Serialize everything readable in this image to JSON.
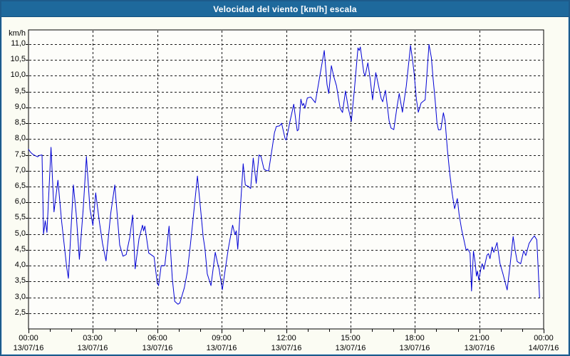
{
  "window": {
    "title": "Velocidad del viento [km/h] escala"
  },
  "colors": {
    "title_bar": "#1e699c",
    "title_text": "#ffffff",
    "frame_border": "#1d5b8b",
    "frame_inner_highlight": "#cfe3f2",
    "page_background": "#fbfcf3",
    "plot_background": "#fdfdfa",
    "plot_border": "#000000",
    "grid_line": "#1a1a1a",
    "axis_text": "#000000",
    "series_line": "#0101d5"
  },
  "chart_data": {
    "type": "line",
    "title": "Velocidad del viento [km/h] escala",
    "xlabel": "",
    "ylabel": "km/h",
    "ylim": [
      2.0,
      11.45
    ],
    "xlim_hours": [
      0,
      24
    ],
    "grid": "dashed; horizontal every 0.5 km/h, vertical every 3 h",
    "legend_position": "none",
    "x_minor_tick_every_hours": 1,
    "y_ticks": [
      {
        "value": 11.0,
        "label": "11,0"
      },
      {
        "value": 10.5,
        "label": "10,5"
      },
      {
        "value": 10.0,
        "label": "10,0"
      },
      {
        "value": 9.5,
        "label": "9,5"
      },
      {
        "value": 9.0,
        "label": "9,0"
      },
      {
        "value": 8.5,
        "label": "8,5"
      },
      {
        "value": 8.0,
        "label": "8,0"
      },
      {
        "value": 7.5,
        "label": "7,5"
      },
      {
        "value": 7.0,
        "label": "7,0"
      },
      {
        "value": 6.5,
        "label": "6,5"
      },
      {
        "value": 6.0,
        "label": "6,0"
      },
      {
        "value": 5.5,
        "label": "5,5"
      },
      {
        "value": 5.0,
        "label": "5,0"
      },
      {
        "value": 4.5,
        "label": "4,5"
      },
      {
        "value": 4.0,
        "label": "4,0"
      },
      {
        "value": 3.5,
        "label": "3,5"
      },
      {
        "value": 3.0,
        "label": "3,0"
      },
      {
        "value": 2.5,
        "label": "2,5"
      }
    ],
    "x_ticks": [
      {
        "hour": 0,
        "time": "00:00",
        "date": "13/07/16"
      },
      {
        "hour": 3,
        "time": "03:00",
        "date": "13/07/16"
      },
      {
        "hour": 6,
        "time": "06:00",
        "date": "13/07/16"
      },
      {
        "hour": 9,
        "time": "09:00",
        "date": "13/07/16"
      },
      {
        "hour": 12,
        "time": "12:00",
        "date": "13/07/16"
      },
      {
        "hour": 15,
        "time": "15:00",
        "date": "13/07/16"
      },
      {
        "hour": 18,
        "time": "18:00",
        "date": "13/07/16"
      },
      {
        "hour": 21,
        "time": "21:00",
        "date": "13/07/16"
      },
      {
        "hour": 24,
        "time": "00:00",
        "date": "14/07/16"
      }
    ],
    "series": [
      {
        "name": "Velocidad del viento [km/h]",
        "color": "#0101d5",
        "points": [
          [
            0.0,
            7.68
          ],
          [
            0.1,
            7.58
          ],
          [
            0.2,
            7.52
          ],
          [
            0.3,
            7.48
          ],
          [
            0.42,
            7.44
          ],
          [
            0.5,
            7.48
          ],
          [
            0.63,
            7.5
          ],
          [
            0.7,
            5.0
          ],
          [
            0.78,
            5.42
          ],
          [
            0.86,
            5.05
          ],
          [
            1.05,
            7.74
          ],
          [
            1.19,
            5.7
          ],
          [
            1.37,
            6.7
          ],
          [
            1.54,
            5.42
          ],
          [
            1.78,
            3.95
          ],
          [
            1.86,
            3.6
          ],
          [
            2.09,
            6.55
          ],
          [
            2.22,
            5.65
          ],
          [
            2.37,
            4.2
          ],
          [
            2.55,
            5.8
          ],
          [
            2.7,
            7.45
          ],
          [
            2.86,
            5.8
          ],
          [
            3.0,
            5.27
          ],
          [
            3.13,
            6.3
          ],
          [
            3.3,
            5.4
          ],
          [
            3.45,
            4.7
          ],
          [
            3.61,
            4.15
          ],
          [
            3.83,
            5.65
          ],
          [
            4.02,
            6.55
          ],
          [
            4.25,
            4.65
          ],
          [
            4.4,
            4.3
          ],
          [
            4.55,
            4.35
          ],
          [
            4.72,
            4.9
          ],
          [
            4.85,
            5.6
          ],
          [
            4.97,
            3.9
          ],
          [
            5.15,
            4.85
          ],
          [
            5.31,
            5.28
          ],
          [
            5.36,
            5.1
          ],
          [
            5.42,
            5.25
          ],
          [
            5.6,
            4.4
          ],
          [
            5.85,
            4.28
          ],
          [
            6.0,
            3.43
          ],
          [
            6.06,
            3.37
          ],
          [
            6.18,
            4.0
          ],
          [
            6.35,
            4.0
          ],
          [
            6.55,
            5.25
          ],
          [
            6.7,
            3.6
          ],
          [
            6.81,
            2.87
          ],
          [
            6.96,
            2.78
          ],
          [
            7.05,
            2.82
          ],
          [
            7.26,
            3.3
          ],
          [
            7.4,
            3.8
          ],
          [
            7.55,
            4.7
          ],
          [
            7.7,
            5.7
          ],
          [
            7.87,
            6.83
          ],
          [
            8.03,
            5.7
          ],
          [
            8.14,
            4.9
          ],
          [
            8.22,
            4.55
          ],
          [
            8.33,
            3.74
          ],
          [
            8.5,
            3.37
          ],
          [
            8.7,
            4.42
          ],
          [
            8.81,
            4.08
          ],
          [
            8.88,
            3.9
          ],
          [
            9.03,
            3.24
          ],
          [
            9.31,
            4.55
          ],
          [
            9.51,
            5.28
          ],
          [
            9.62,
            4.98
          ],
          [
            9.68,
            5.1
          ],
          [
            9.75,
            4.52
          ],
          [
            10.0,
            7.22
          ],
          [
            10.1,
            6.55
          ],
          [
            10.25,
            6.5
          ],
          [
            10.35,
            6.44
          ],
          [
            10.47,
            7.4
          ],
          [
            10.61,
            6.6
          ],
          [
            10.74,
            7.5
          ],
          [
            10.83,
            7.45
          ],
          [
            10.97,
            7.05
          ],
          [
            11.1,
            7.0
          ],
          [
            11.19,
            7.0
          ],
          [
            11.35,
            7.7
          ],
          [
            11.46,
            8.2
          ],
          [
            11.55,
            8.4
          ],
          [
            11.7,
            8.42
          ],
          [
            11.79,
            8.5
          ],
          [
            11.96,
            8.0
          ],
          [
            12.01,
            7.97
          ],
          [
            12.18,
            8.55
          ],
          [
            12.36,
            9.1
          ],
          [
            12.47,
            8.5
          ],
          [
            12.52,
            8.26
          ],
          [
            12.58,
            8.3
          ],
          [
            12.69,
            9.26
          ],
          [
            12.76,
            9.06
          ],
          [
            12.82,
            9.13
          ],
          [
            12.88,
            8.97
          ],
          [
            12.99,
            9.3
          ],
          [
            13.15,
            9.33
          ],
          [
            13.36,
            9.15
          ],
          [
            13.6,
            10.1
          ],
          [
            13.78,
            10.8
          ],
          [
            13.91,
            9.72
          ],
          [
            13.99,
            9.44
          ],
          [
            14.11,
            10.32
          ],
          [
            14.22,
            9.98
          ],
          [
            14.35,
            9.68
          ],
          [
            14.52,
            8.97
          ],
          [
            14.63,
            8.84
          ],
          [
            14.77,
            9.52
          ],
          [
            14.9,
            8.97
          ],
          [
            15.04,
            8.56
          ],
          [
            15.18,
            9.54
          ],
          [
            15.35,
            10.88
          ],
          [
            15.41,
            10.8
          ],
          [
            15.46,
            10.91
          ],
          [
            15.62,
            10.1
          ],
          [
            15.68,
            9.99
          ],
          [
            15.81,
            10.41
          ],
          [
            15.92,
            9.89
          ],
          [
            16.03,
            9.24
          ],
          [
            16.18,
            10.1
          ],
          [
            16.31,
            9.68
          ],
          [
            16.43,
            9.28
          ],
          [
            16.5,
            9.18
          ],
          [
            16.63,
            9.54
          ],
          [
            16.8,
            8.58
          ],
          [
            16.89,
            8.35
          ],
          [
            17.02,
            8.3
          ],
          [
            17.16,
            8.97
          ],
          [
            17.27,
            9.44
          ],
          [
            17.42,
            8.85
          ],
          [
            17.6,
            9.67
          ],
          [
            17.8,
            10.96
          ],
          [
            17.9,
            10.47
          ],
          [
            17.97,
            10.06
          ],
          [
            18.07,
            9.26
          ],
          [
            18.16,
            8.85
          ],
          [
            18.29,
            9.14
          ],
          [
            18.4,
            9.2
          ],
          [
            18.48,
            9.24
          ],
          [
            18.66,
            10.99
          ],
          [
            18.77,
            10.58
          ],
          [
            18.85,
            9.9
          ],
          [
            18.94,
            9.26
          ],
          [
            19.03,
            8.51
          ],
          [
            19.1,
            8.29
          ],
          [
            19.21,
            8.3
          ],
          [
            19.33,
            8.83
          ],
          [
            19.41,
            8.57
          ],
          [
            19.52,
            7.65
          ],
          [
            19.63,
            6.88
          ],
          [
            19.74,
            6.27
          ],
          [
            19.85,
            5.8
          ],
          [
            19.98,
            6.12
          ],
          [
            20.06,
            5.63
          ],
          [
            20.18,
            5.14
          ],
          [
            20.26,
            4.9
          ],
          [
            20.39,
            4.49
          ],
          [
            20.46,
            4.53
          ],
          [
            20.57,
            4.4
          ],
          [
            20.64,
            3.2
          ],
          [
            20.73,
            4.46
          ],
          [
            20.81,
            4.1
          ],
          [
            20.87,
            3.67
          ],
          [
            20.92,
            3.83
          ],
          [
            20.98,
            3.54
          ],
          [
            21.09,
            3.95
          ],
          [
            21.14,
            4.06
          ],
          [
            21.21,
            3.88
          ],
          [
            21.36,
            4.33
          ],
          [
            21.43,
            4.38
          ],
          [
            21.5,
            4.22
          ],
          [
            21.6,
            4.59
          ],
          [
            21.68,
            4.42
          ],
          [
            21.83,
            4.73
          ],
          [
            21.97,
            4.06
          ],
          [
            22.1,
            3.75
          ],
          [
            22.3,
            3.23
          ],
          [
            22.44,
            4.04
          ],
          [
            22.58,
            4.92
          ],
          [
            22.67,
            4.5
          ],
          [
            22.77,
            4.13
          ],
          [
            22.93,
            4.06
          ],
          [
            23.07,
            4.47
          ],
          [
            23.17,
            4.32
          ],
          [
            23.32,
            4.7
          ],
          [
            23.46,
            4.85
          ],
          [
            23.57,
            4.94
          ],
          [
            23.68,
            4.82
          ],
          [
            23.81,
            2.99
          ]
        ]
      }
    ]
  }
}
